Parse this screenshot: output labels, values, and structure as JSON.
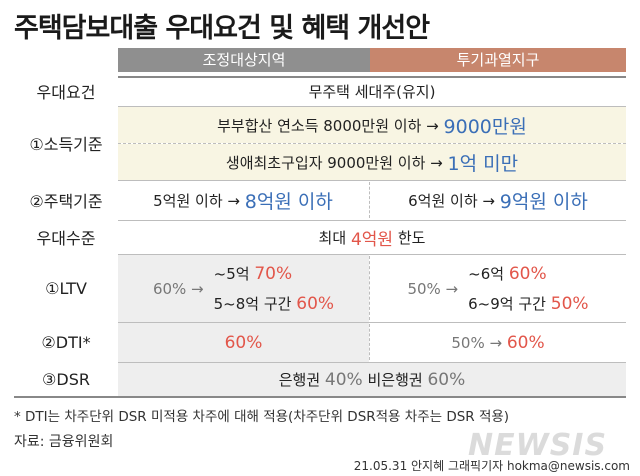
{
  "title": "주택담보대출 우대요건 및 혜택 개선안",
  "headers": {
    "adjusted": "조정대상지역",
    "speculative": "투기과열지구"
  },
  "rows": {
    "requirement": {
      "label": "우대요건",
      "value": "무주택 세대주(유지)"
    },
    "income": {
      "label": "①소득기준",
      "line1_prefix": "부부합산 연소득 8000만원 이하 →",
      "line1_highlight": "9000만원",
      "line2_prefix": "생애최초구입자 9000만원 이하 →",
      "line2_highlight": "1억 미만"
    },
    "house": {
      "label": "②주택기준",
      "adjusted_prefix": "5억원 이하 →",
      "adjusted_highlight": "8억원 이하",
      "spec_prefix": "6억원 이하 →",
      "spec_highlight": "9억원 이하"
    },
    "level": {
      "label": "우대수준",
      "prefix": "최대",
      "highlight": "4억원",
      "suffix": "한도"
    },
    "ltv": {
      "label": "①LTV",
      "adjusted_base": "60% →",
      "adjusted_line1_prefix": "~5억",
      "adjusted_line1_value": "70%",
      "adjusted_line2_prefix": "5~8억 구간",
      "adjusted_line2_value": "60%",
      "spec_base": "50% →",
      "spec_line1_prefix": "~6억",
      "spec_line1_value": "60%",
      "spec_line2_prefix": "6~9억 구간",
      "spec_line2_value": "50%"
    },
    "dti": {
      "label": "②DTI*",
      "adjusted_value": "60%",
      "spec_prefix": "50% →",
      "spec_value": "60%"
    },
    "dsr": {
      "label": "③DSR",
      "bank": "은행권",
      "bank_value": "40%",
      "nonbank": "비은행권",
      "nonbank_value": "60%"
    }
  },
  "footnote": "* DTI는 차주단위 DSR 미적용 차주에 대해 적용(차주단위 DSR적용 차주는 DSR 적용)",
  "source": "자료: 금융위원회",
  "watermark": "NEWSIS",
  "credit": "21.05.31 안지혜 그래픽기자 hokma@newsis.com",
  "colors": {
    "blue": "#3b6fb7",
    "red": "#e2564a",
    "header_grey": "#8f8f8f",
    "header_orange": "#c7866d",
    "yellow_bg": "#f8f5e3"
  }
}
